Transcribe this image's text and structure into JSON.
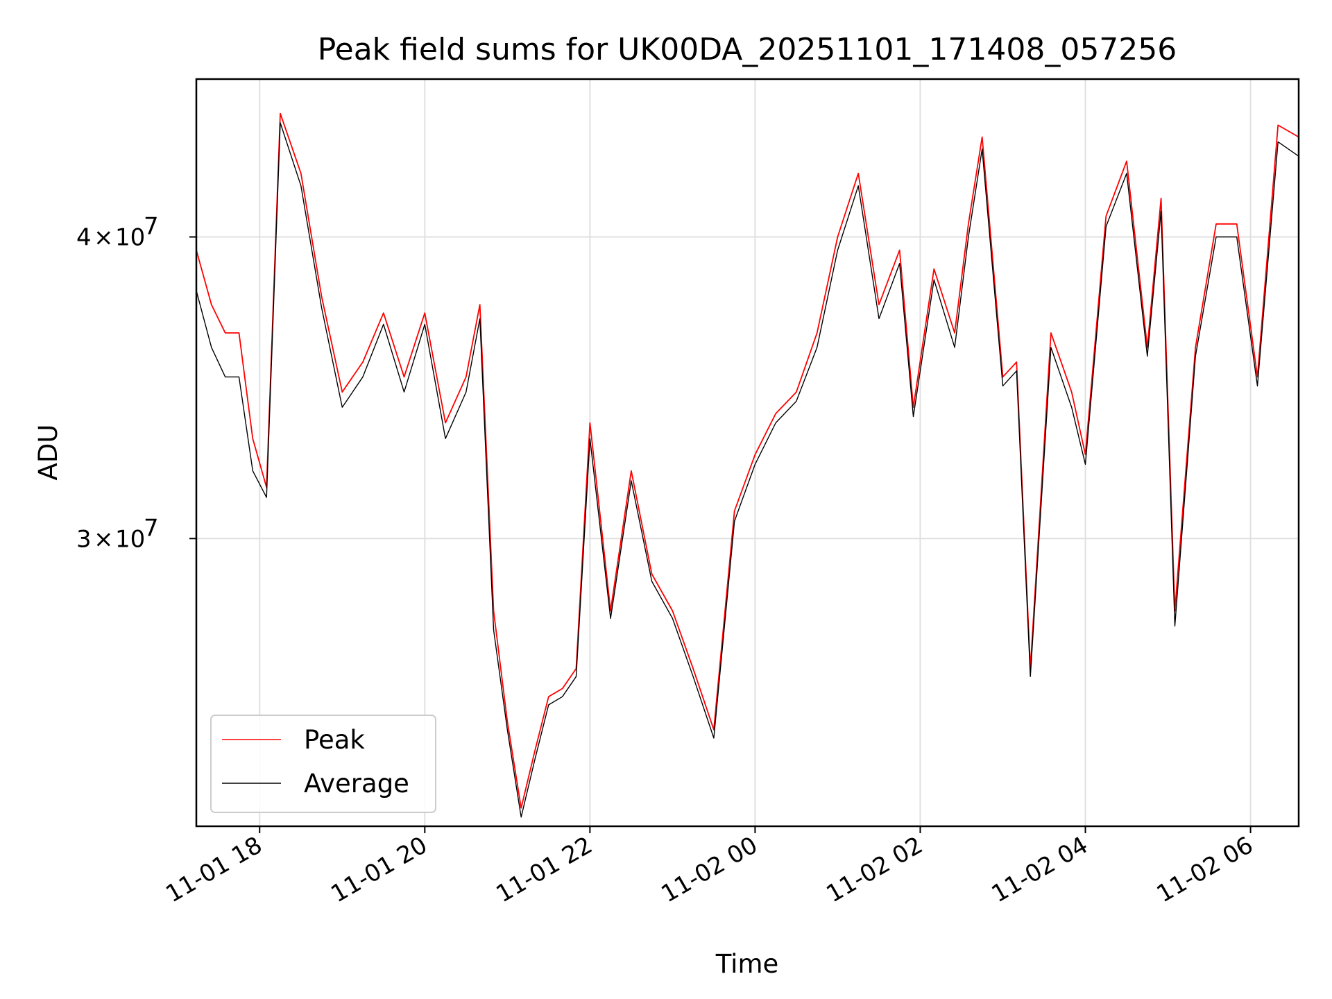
{
  "chart_data": {
    "type": "line",
    "title": "Peak field sums for UK00DA_20251101_171408_057256",
    "xlabel": "Time",
    "ylabel": "ADU",
    "xlim": [
      "2025-11-01 17:14",
      "2025-11-02 06:35"
    ],
    "ylim": [
      22800000,
      46500000
    ],
    "yscale": "log",
    "x_ticks": [
      {
        "value": "2025-11-01 18:00",
        "label": "11-01 18"
      },
      {
        "value": "2025-11-01 20:00",
        "label": "11-01 20"
      },
      {
        "value": "2025-11-01 22:00",
        "label": "11-01 22"
      },
      {
        "value": "2025-11-02 00:00",
        "label": "11-02 00"
      },
      {
        "value": "2025-11-02 02:00",
        "label": "11-02 02"
      },
      {
        "value": "2025-11-02 04:00",
        "label": "11-02 04"
      },
      {
        "value": "2025-11-02 06:00",
        "label": "11-02 06"
      }
    ],
    "y_ticks": [
      {
        "value": 30000000,
        "label_mantissa": "3",
        "label_base": "10",
        "label_exp": "7"
      },
      {
        "value": 40000000,
        "label_mantissa": "4",
        "label_base": "10",
        "label_exp": "7"
      }
    ],
    "grid": true,
    "legend_position": "lower-left",
    "x": [
      "2025-11-01 17:14",
      "2025-11-01 17:25",
      "2025-11-01 17:35",
      "2025-11-01 17:45",
      "2025-11-01 17:55",
      "2025-11-01 18:05",
      "2025-11-01 18:15",
      "2025-11-01 18:30",
      "2025-11-01 18:45",
      "2025-11-01 19:00",
      "2025-11-01 19:15",
      "2025-11-01 19:30",
      "2025-11-01 19:45",
      "2025-11-01 20:00",
      "2025-11-01 20:15",
      "2025-11-01 20:30",
      "2025-11-01 20:40",
      "2025-11-01 20:50",
      "2025-11-01 21:00",
      "2025-11-01 21:10",
      "2025-11-01 21:20",
      "2025-11-01 21:30",
      "2025-11-01 21:40",
      "2025-11-01 21:50",
      "2025-11-01 22:00",
      "2025-11-01 22:15",
      "2025-11-01 22:30",
      "2025-11-01 22:45",
      "2025-11-01 23:00",
      "2025-11-01 23:15",
      "2025-11-01 23:30",
      "2025-11-01 23:45",
      "2025-11-02 00:00",
      "2025-11-02 00:15",
      "2025-11-02 00:30",
      "2025-11-02 00:45",
      "2025-11-02 01:00",
      "2025-11-02 01:15",
      "2025-11-02 01:30",
      "2025-11-02 01:45",
      "2025-11-02 01:55",
      "2025-11-02 02:10",
      "2025-11-02 02:25",
      "2025-11-02 02:35",
      "2025-11-02 02:45",
      "2025-11-02 03:00",
      "2025-11-02 03:10",
      "2025-11-02 03:20",
      "2025-11-02 03:35",
      "2025-11-02 03:50",
      "2025-11-02 04:00",
      "2025-11-02 04:15",
      "2025-11-02 04:30",
      "2025-11-02 04:45",
      "2025-11-02 04:55",
      "2025-11-02 05:05",
      "2025-11-02 05:20",
      "2025-11-02 05:35",
      "2025-11-02 05:50",
      "2025-11-02 06:05",
      "2025-11-02 06:20",
      "2025-11-02 06:35"
    ],
    "series": [
      {
        "name": "Peak",
        "color": "#ff0000",
        "values": [
          39500000,
          37500000,
          36500000,
          36500000,
          33000000,
          31500000,
          45000000,
          42500000,
          37800000,
          34500000,
          35500000,
          37200000,
          35000000,
          37200000,
          33500000,
          35000000,
          37500000,
          28000000,
          25200000,
          23200000,
          24500000,
          25800000,
          26000000,
          26500000,
          33500000,
          28000000,
          32000000,
          29000000,
          28000000,
          26500000,
          25000000,
          30800000,
          32500000,
          33800000,
          34500000,
          36500000,
          40000000,
          42500000,
          37500000,
          39500000,
          34000000,
          38800000,
          36500000,
          40500000,
          44000000,
          35000000,
          35500000,
          26500000,
          36500000,
          34500000,
          32500000,
          40800000,
          43000000,
          36000000,
          41500000,
          28000000,
          36000000,
          40500000,
          40500000,
          35000000,
          44500000,
          44000000
        ]
      },
      {
        "name": "Average",
        "color": "#000000",
        "values": [
          38000000,
          36000000,
          35000000,
          35000000,
          32000000,
          31200000,
          44600000,
          42000000,
          37400000,
          34000000,
          35000000,
          36800000,
          34500000,
          36800000,
          33000000,
          34500000,
          37000000,
          27500000,
          25000000,
          23000000,
          24300000,
          25600000,
          25800000,
          26300000,
          33000000,
          27800000,
          31700000,
          28800000,
          27800000,
          26300000,
          24800000,
          30500000,
          32200000,
          33500000,
          34200000,
          36000000,
          39500000,
          42000000,
          37000000,
          39000000,
          33700000,
          38400000,
          36000000,
          40000000,
          43500000,
          34700000,
          35200000,
          26300000,
          36000000,
          34000000,
          32200000,
          40400000,
          42500000,
          35700000,
          41000000,
          27600000,
          35700000,
          40000000,
          40000000,
          34700000,
          43800000,
          43200000
        ]
      }
    ]
  }
}
